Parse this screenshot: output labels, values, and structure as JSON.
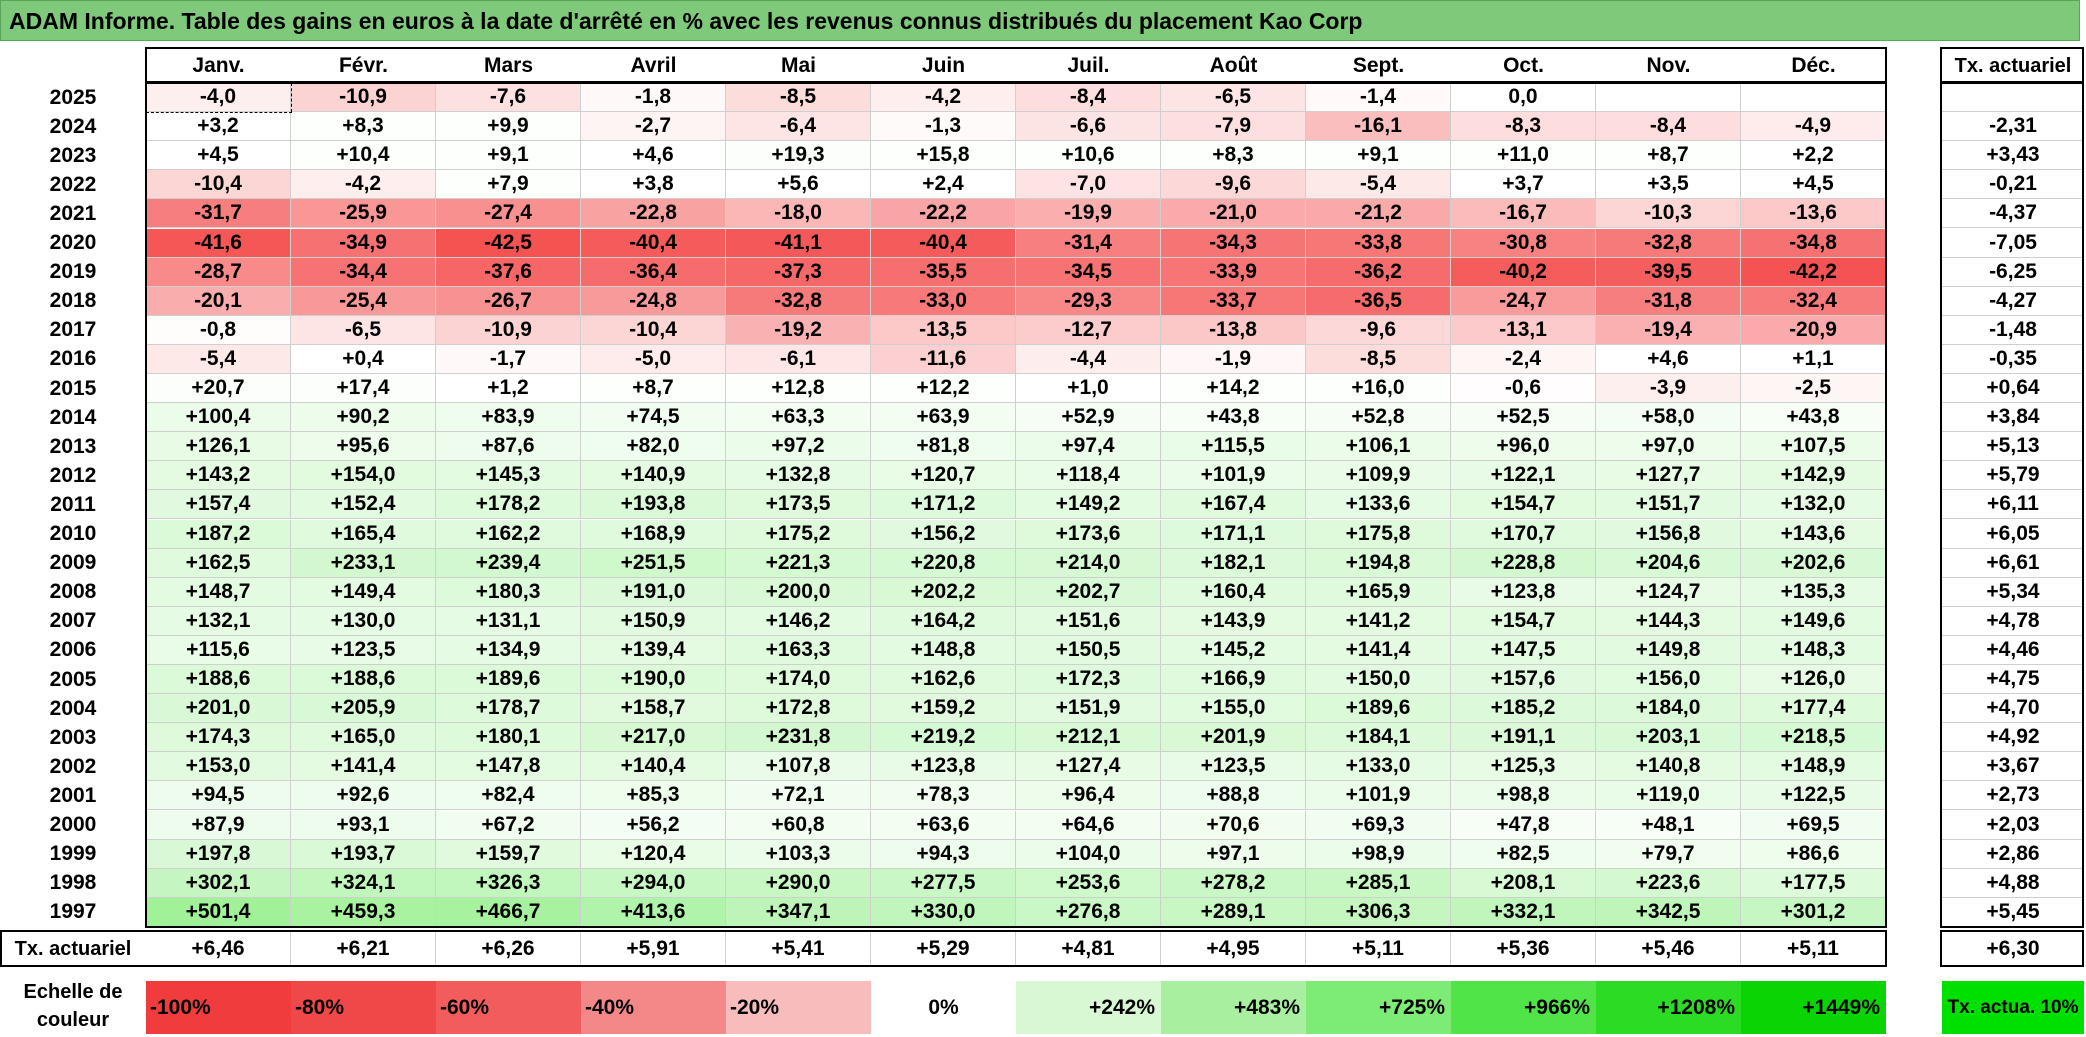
{
  "title": "ADAM Informe. Table des gains en euros à la date d'arrêté en % avec les revenus connus distribués du placement Kao Corp",
  "months": [
    "Janv.",
    "Févr.",
    "Mars",
    "Avril",
    "Mai",
    "Juin",
    "Juil.",
    "Août",
    "Sept.",
    "Oct.",
    "Nov.",
    "Déc."
  ],
  "rate_header": "Tx. actuariel",
  "rows": [
    {
      "year": "2025",
      "values": [
        "-4,0",
        "-10,9",
        "-7,6",
        "-1,8",
        "-8,5",
        "-4,2",
        "-8,4",
        "-6,5",
        "-1,4",
        "0,0",
        "",
        ""
      ],
      "rate": ""
    },
    {
      "year": "2024",
      "values": [
        "+3,2",
        "+8,3",
        "+9,9",
        "-2,7",
        "-6,4",
        "-1,3",
        "-6,6",
        "-7,9",
        "-16,1",
        "-8,3",
        "-8,4",
        "-4,9"
      ],
      "rate": "-2,31"
    },
    {
      "year": "2023",
      "values": [
        "+4,5",
        "+10,4",
        "+9,1",
        "+4,6",
        "+19,3",
        "+15,8",
        "+10,6",
        "+8,3",
        "+9,1",
        "+11,0",
        "+8,7",
        "+2,2"
      ],
      "rate": "+3,43"
    },
    {
      "year": "2022",
      "values": [
        "-10,4",
        "-4,2",
        "+7,9",
        "+3,8",
        "+5,6",
        "+2,4",
        "-7,0",
        "-9,6",
        "-5,4",
        "+3,7",
        "+3,5",
        "+4,5"
      ],
      "rate": "-0,21"
    },
    {
      "year": "2021",
      "values": [
        "-31,7",
        "-25,9",
        "-27,4",
        "-22,8",
        "-18,0",
        "-22,2",
        "-19,9",
        "-21,0",
        "-21,2",
        "-16,7",
        "-10,3",
        "-13,6"
      ],
      "rate": "-4,37"
    },
    {
      "year": "2020",
      "values": [
        "-41,6",
        "-34,9",
        "-42,5",
        "-40,4",
        "-41,1",
        "-40,4",
        "-31,4",
        "-34,3",
        "-33,8",
        "-30,8",
        "-32,8",
        "-34,8"
      ],
      "rate": "-7,05"
    },
    {
      "year": "2019",
      "values": [
        "-28,7",
        "-34,4",
        "-37,6",
        "-36,4",
        "-37,3",
        "-35,5",
        "-34,5",
        "-33,9",
        "-36,2",
        "-40,2",
        "-39,5",
        "-42,2"
      ],
      "rate": "-6,25"
    },
    {
      "year": "2018",
      "values": [
        "-20,1",
        "-25,4",
        "-26,7",
        "-24,8",
        "-32,8",
        "-33,0",
        "-29,3",
        "-33,7",
        "-36,5",
        "-24,7",
        "-31,8",
        "-32,4"
      ],
      "rate": "-4,27"
    },
    {
      "year": "2017",
      "values": [
        "-0,8",
        "-6,5",
        "-10,9",
        "-10,4",
        "-19,2",
        "-13,5",
        "-12,7",
        "-13,8",
        "-9,6",
        "-13,1",
        "-19,4",
        "-20,9"
      ],
      "rate": "-1,48"
    },
    {
      "year": "2016",
      "values": [
        "-5,4",
        "+0,4",
        "-1,7",
        "-5,0",
        "-6,1",
        "-11,6",
        "-4,4",
        "-1,9",
        "-8,5",
        "-2,4",
        "+4,6",
        "+1,1"
      ],
      "rate": "-0,35"
    },
    {
      "year": "2015",
      "values": [
        "+20,7",
        "+17,4",
        "+1,2",
        "+8,7",
        "+12,8",
        "+12,2",
        "+1,0",
        "+14,2",
        "+16,0",
        "-0,6",
        "-3,9",
        "-2,5"
      ],
      "rate": "+0,64"
    },
    {
      "year": "2014",
      "values": [
        "+100,4",
        "+90,2",
        "+83,9",
        "+74,5",
        "+63,3",
        "+63,9",
        "+52,9",
        "+43,8",
        "+52,8",
        "+52,5",
        "+58,0",
        "+43,8"
      ],
      "rate": "+3,84"
    },
    {
      "year": "2013",
      "values": [
        "+126,1",
        "+95,6",
        "+87,6",
        "+82,0",
        "+97,2",
        "+81,8",
        "+97,4",
        "+115,5",
        "+106,1",
        "+96,0",
        "+97,0",
        "+107,5"
      ],
      "rate": "+5,13"
    },
    {
      "year": "2012",
      "values": [
        "+143,2",
        "+154,0",
        "+145,3",
        "+140,9",
        "+132,8",
        "+120,7",
        "+118,4",
        "+101,9",
        "+109,9",
        "+122,1",
        "+127,7",
        "+142,9"
      ],
      "rate": "+5,79"
    },
    {
      "year": "2011",
      "values": [
        "+157,4",
        "+152,4",
        "+178,2",
        "+193,8",
        "+173,5",
        "+171,2",
        "+149,2",
        "+167,4",
        "+133,6",
        "+154,7",
        "+151,7",
        "+132,0"
      ],
      "rate": "+6,11"
    },
    {
      "year": "2010",
      "values": [
        "+187,2",
        "+165,4",
        "+162,2",
        "+168,9",
        "+175,2",
        "+156,2",
        "+173,6",
        "+171,1",
        "+175,8",
        "+170,7",
        "+156,8",
        "+143,6"
      ],
      "rate": "+6,05"
    },
    {
      "year": "2009",
      "values": [
        "+162,5",
        "+233,1",
        "+239,4",
        "+251,5",
        "+221,3",
        "+220,8",
        "+214,0",
        "+182,1",
        "+194,8",
        "+228,8",
        "+204,6",
        "+202,6"
      ],
      "rate": "+6,61"
    },
    {
      "year": "2008",
      "values": [
        "+148,7",
        "+149,4",
        "+180,3",
        "+191,0",
        "+200,0",
        "+202,2",
        "+202,7",
        "+160,4",
        "+165,9",
        "+123,8",
        "+124,7",
        "+135,3"
      ],
      "rate": "+5,34"
    },
    {
      "year": "2007",
      "values": [
        "+132,1",
        "+130,0",
        "+131,1",
        "+150,9",
        "+146,2",
        "+164,2",
        "+151,6",
        "+143,9",
        "+141,2",
        "+154,7",
        "+144,3",
        "+149,6"
      ],
      "rate": "+4,78"
    },
    {
      "year": "2006",
      "values": [
        "+115,6",
        "+123,5",
        "+134,9",
        "+139,4",
        "+163,3",
        "+148,8",
        "+150,5",
        "+145,2",
        "+141,4",
        "+147,5",
        "+149,8",
        "+148,3"
      ],
      "rate": "+4,46"
    },
    {
      "year": "2005",
      "values": [
        "+188,6",
        "+188,6",
        "+189,6",
        "+190,0",
        "+174,0",
        "+162,6",
        "+172,3",
        "+166,9",
        "+150,0",
        "+157,6",
        "+156,0",
        "+126,0"
      ],
      "rate": "+4,75"
    },
    {
      "year": "2004",
      "values": [
        "+201,0",
        "+205,9",
        "+178,7",
        "+158,7",
        "+172,8",
        "+159,2",
        "+151,9",
        "+155,0",
        "+189,6",
        "+185,2",
        "+184,0",
        "+177,4"
      ],
      "rate": "+4,70"
    },
    {
      "year": "2003",
      "values": [
        "+174,3",
        "+165,0",
        "+180,1",
        "+217,0",
        "+231,8",
        "+219,2",
        "+212,1",
        "+201,9",
        "+184,1",
        "+191,1",
        "+203,1",
        "+218,5"
      ],
      "rate": "+4,92"
    },
    {
      "year": "2002",
      "values": [
        "+153,0",
        "+141,4",
        "+147,8",
        "+140,4",
        "+107,8",
        "+123,8",
        "+127,4",
        "+123,5",
        "+133,0",
        "+125,3",
        "+140,8",
        "+148,9"
      ],
      "rate": "+3,67"
    },
    {
      "year": "2001",
      "values": [
        "+94,5",
        "+92,6",
        "+82,4",
        "+85,3",
        "+72,1",
        "+78,3",
        "+96,4",
        "+88,8",
        "+101,9",
        "+98,8",
        "+119,0",
        "+122,5"
      ],
      "rate": "+2,73"
    },
    {
      "year": "2000",
      "values": [
        "+87,9",
        "+93,1",
        "+67,2",
        "+56,2",
        "+60,8",
        "+63,6",
        "+64,6",
        "+70,6",
        "+69,3",
        "+47,8",
        "+48,1",
        "+69,5"
      ],
      "rate": "+2,03"
    },
    {
      "year": "1999",
      "values": [
        "+197,8",
        "+193,7",
        "+159,7",
        "+120,4",
        "+103,3",
        "+94,3",
        "+104,0",
        "+97,1",
        "+98,9",
        "+82,5",
        "+79,7",
        "+86,6"
      ],
      "rate": "+2,86"
    },
    {
      "year": "1998",
      "values": [
        "+302,1",
        "+324,1",
        "+326,3",
        "+294,0",
        "+290,0",
        "+277,5",
        "+253,6",
        "+278,2",
        "+285,1",
        "+208,1",
        "+223,6",
        "+177,5"
      ],
      "rate": "+4,88"
    },
    {
      "year": "1997",
      "values": [
        "+501,4",
        "+459,3",
        "+466,7",
        "+413,6",
        "+347,1",
        "+330,0",
        "+276,8",
        "+289,1",
        "+306,3",
        "+332,1",
        "+342,5",
        "+301,2"
      ],
      "rate": "+5,45"
    }
  ],
  "footer": {
    "label": "Tx. actuariel",
    "values": [
      "+6,46",
      "+6,21",
      "+6,26",
      "+5,91",
      "+5,41",
      "+5,29",
      "+4,81",
      "+4,95",
      "+5,11",
      "+5,36",
      "+5,46",
      "+5,11"
    ],
    "rate": "+6,30"
  },
  "legend": {
    "label": "Echelle de couleur",
    "items": [
      {
        "text": "-100%",
        "color": "#f03c3c"
      },
      {
        "text": "-80%",
        "color": "#f04848"
      },
      {
        "text": "-60%",
        "color": "#f25c5c"
      },
      {
        "text": "-40%",
        "color": "#f48888"
      },
      {
        "text": "-20%",
        "color": "#f8bcbc"
      },
      {
        "text": "0%",
        "color": "#ffffff"
      },
      {
        "text": "+242%",
        "color": "#d8f8d4"
      },
      {
        "text": "+483%",
        "color": "#a8f0a0"
      },
      {
        "text": "+725%",
        "color": "#7cec74"
      },
      {
        "text": "+966%",
        "color": "#50e448"
      },
      {
        "text": "+1208%",
        "color": "#2cdc24"
      },
      {
        "text": "+1449%",
        "color": "#0ad404"
      }
    ],
    "rate_box": "Tx. actua. 10%"
  }
}
